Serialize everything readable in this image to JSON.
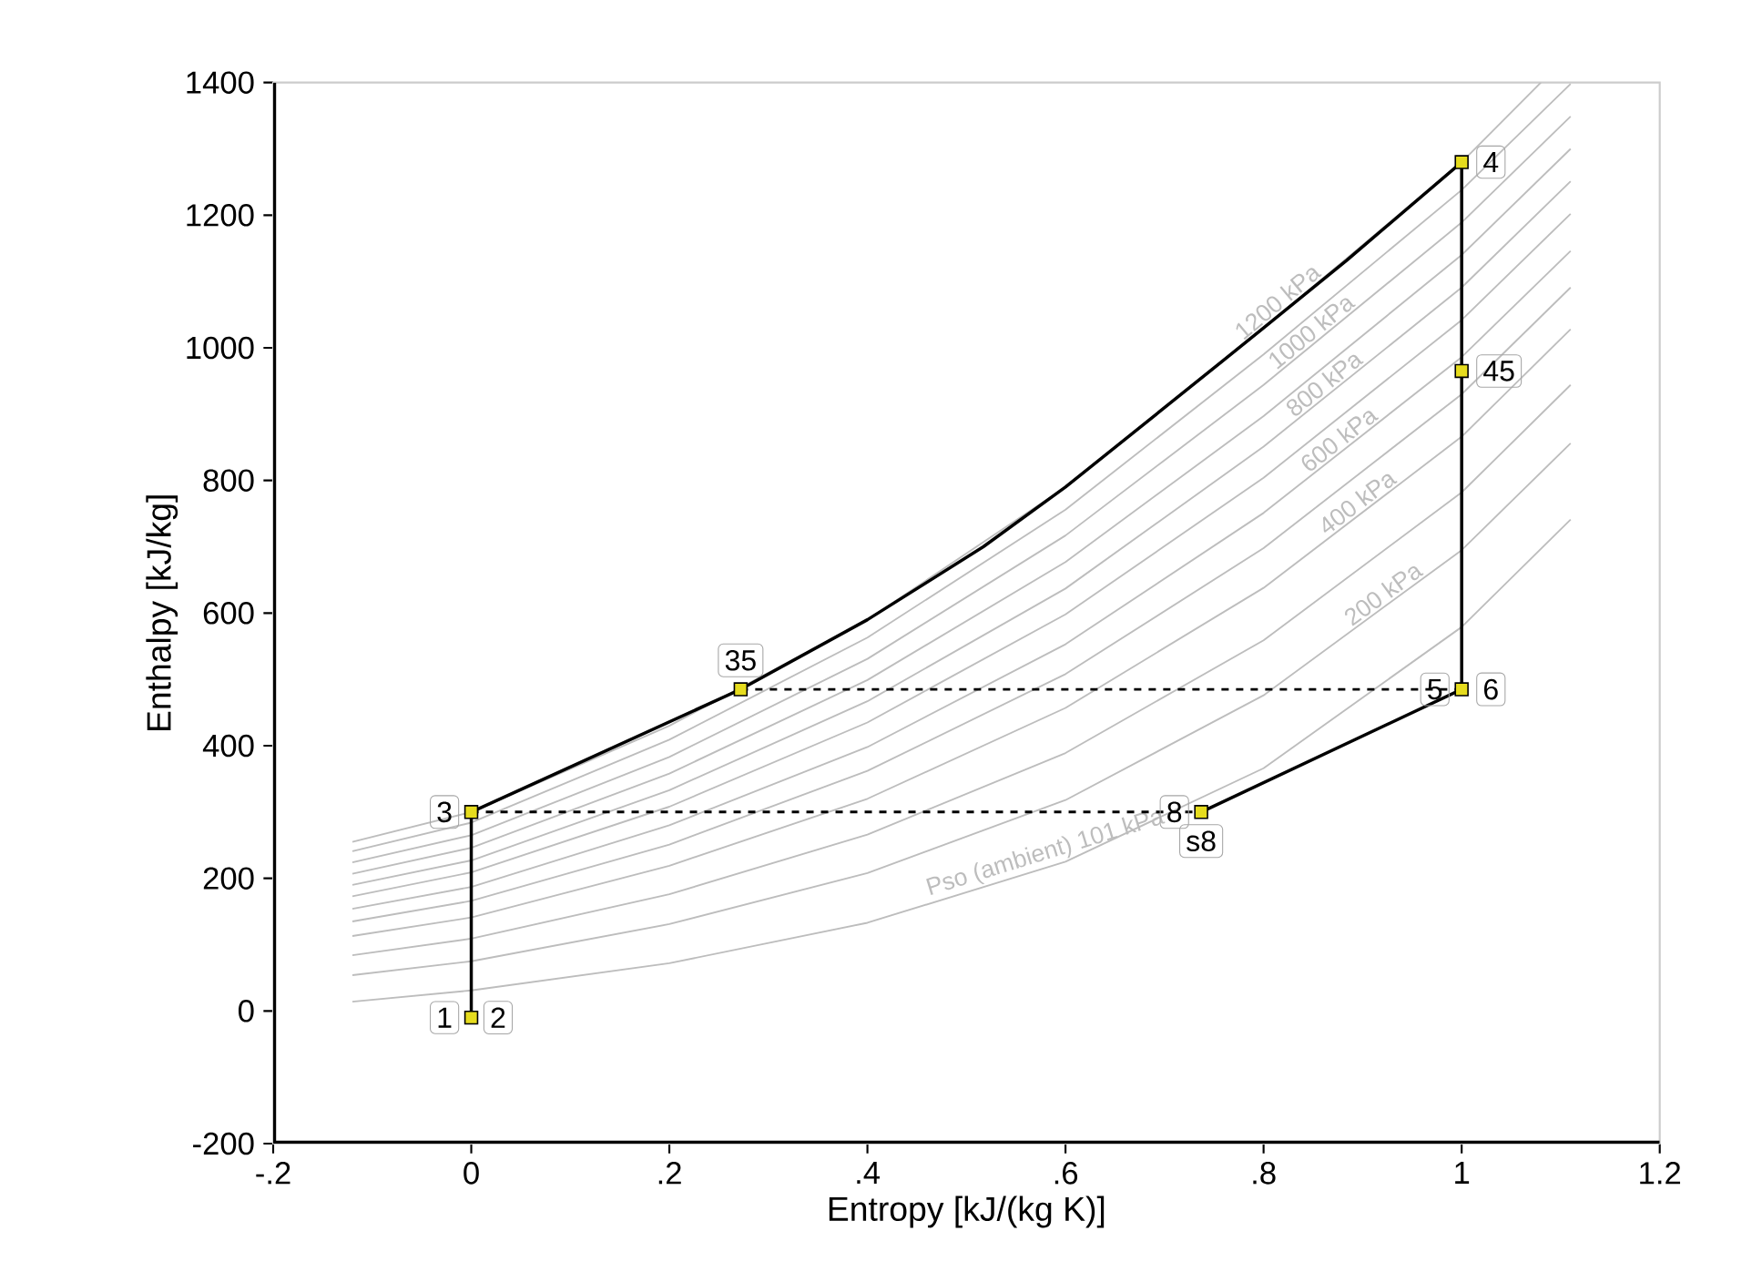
{
  "chart_data": {
    "type": "line",
    "xlabel": "Entropy [kJ/(kg K)]",
    "ylabel": "Enthalpy [kJ/kg]",
    "xlim": [
      -0.2,
      1.2
    ],
    "ylim": [
      -200,
      1400
    ],
    "xticks": [
      {
        "value": -0.2,
        "label": "-.2"
      },
      0,
      {
        "value": 0.2,
        "label": ".2"
      },
      {
        "value": 0.4,
        "label": ".4"
      },
      {
        "value": 0.6,
        "label": ".6"
      },
      {
        "value": 0.8,
        "label": ".8"
      },
      1,
      {
        "value": 1.2,
        "label": "1.2"
      }
    ],
    "yticks": [
      -200,
      0,
      200,
      400,
      600,
      800,
      1000,
      1200,
      1400
    ],
    "series": [
      {
        "name": "Pso (ambient) 101 kPa",
        "color": "#bdbdbd",
        "x": [
          -0.12,
          0,
          0.2,
          0.4,
          0.6,
          0.8,
          1.0,
          1.11
        ],
        "values": [
          14,
          31,
          72,
          133,
          225,
          366,
          579,
          741
        ]
      },
      {
        "name": "200 kPa",
        "color": "#bdbdbd",
        "x": [
          -0.12,
          0,
          0.2,
          0.4,
          0.6,
          0.8,
          1.0,
          1.11
        ],
        "values": [
          54,
          75,
          131,
          208,
          318,
          476,
          695,
          856
        ]
      },
      {
        "color": "#bdbdbd",
        "x": [
          -0.12,
          0,
          0.2,
          0.4,
          0.6,
          0.8,
          1.0,
          1.11
        ],
        "values": [
          84,
          109,
          176,
          266,
          389,
          559,
          782,
          944
        ]
      },
      {
        "name": "400 kPa",
        "color": "#bdbdbd",
        "x": [
          -0.12,
          0,
          0.2,
          0.4,
          0.6,
          0.8,
          1.0,
          1.11
        ],
        "values": [
          113,
          141,
          219,
          320,
          457,
          638,
          866,
          1028
        ]
      },
      {
        "color": "#bdbdbd",
        "x": [
          -0.12,
          0,
          0.2,
          0.4,
          0.6,
          0.8,
          1.0,
          1.11
        ],
        "values": [
          135,
          166,
          251,
          362,
          508,
          698,
          930,
          1091
        ]
      },
      {
        "name": "600 kPa",
        "color": "#bdbdbd",
        "x": [
          -0.12,
          0,
          0.2,
          0.4,
          0.6,
          0.8,
          1.0,
          1.11
        ],
        "values": [
          154,
          187,
          280,
          398,
          553,
          751,
          986,
          1146
        ]
      },
      {
        "color": "#bdbdbd",
        "x": [
          -0.12,
          0,
          0.2,
          0.4,
          0.6,
          0.8,
          1.0,
          1.11
        ],
        "values": [
          173,
          209,
          308,
          435,
          598,
          804,
          1042,
          1202
        ]
      },
      {
        "name": "800 kPa",
        "color": "#bdbdbd",
        "x": [
          -0.12,
          0,
          0.2,
          0.4,
          0.6,
          0.8,
          1.0,
          1.11
        ],
        "values": [
          190,
          227,
          333,
          467,
          637,
          851,
          1091,
          1251
        ]
      },
      {
        "color": "#bdbdbd",
        "x": [
          -0.12,
          0,
          0.2,
          0.4,
          0.6,
          0.8,
          1.0,
          1.11
        ],
        "values": [
          207,
          246,
          358,
          499,
          677,
          897,
          1140,
          1300
        ]
      },
      {
        "name": "1000 kPa",
        "color": "#bdbdbd",
        "x": [
          -0.12,
          0,
          0.2,
          0.4,
          0.6,
          0.8,
          1.0,
          1.11
        ],
        "values": [
          224,
          265,
          383,
          531,
          717,
          944,
          1189,
          1349
        ]
      },
      {
        "color": "#bdbdbd",
        "x": [
          -0.12,
          0,
          0.2,
          0.4,
          0.6,
          0.8,
          1.0,
          1.11
        ],
        "values": [
          241,
          284,
          409,
          563,
          756,
          990,
          1238,
          1398
        ]
      },
      {
        "name": "1200 kPa",
        "color": "#bdbdbd",
        "x": [
          -0.12,
          0,
          0.2,
          0.4,
          0.6,
          0.8,
          1.0,
          1.08
        ],
        "values": [
          255,
          300,
          430,
          590,
          790,
          1030,
          1280,
          1400
        ]
      },
      {
        "color": "#000000",
        "x": [
          0,
          0,
          0.272,
          0.4,
          0.517,
          0.6,
          0.761,
          0.8,
          0.884,
          1.0,
          1.0,
          0.737
        ],
        "values": [
          -10,
          300,
          485,
          590,
          700,
          790,
          983,
          1030,
          1132,
          1280,
          485,
          300
        ]
      },
      {
        "line_style": "dashed",
        "color": "#000000",
        "x": [
          0,
          0.737
        ],
        "values": [
          300,
          300
        ]
      },
      {
        "line_style": "dashed",
        "color": "#000000",
        "x": [
          0.272,
          1.0
        ],
        "values": [
          485,
          485
        ]
      },
      {
        "type": "scatter",
        "marker": "square",
        "color": "#e6dc1e",
        "x": [
          0,
          0,
          0.272,
          1.0,
          1.0,
          1.0,
          0.737
        ],
        "values": [
          -10,
          300,
          485,
          1280,
          965,
          485,
          300
        ]
      }
    ],
    "annotations": [
      {
        "text": "1",
        "x": 0,
        "y": -10
      },
      {
        "text": "2",
        "x": 0,
        "y": -10
      },
      {
        "text": "3",
        "x": 0,
        "y": 300
      },
      {
        "text": "35",
        "x": 0.272,
        "y": 485
      },
      {
        "text": "4",
        "x": 1.0,
        "y": 1280
      },
      {
        "text": "45",
        "x": 1.0,
        "y": 965
      },
      {
        "text": "5",
        "x": 1.0,
        "y": 485
      },
      {
        "text": "6",
        "x": 1.0,
        "y": 485
      },
      {
        "text": "8",
        "x": 0.737,
        "y": 300
      },
      {
        "text": "s8",
        "x": 0.737,
        "y": 300
      }
    ]
  }
}
